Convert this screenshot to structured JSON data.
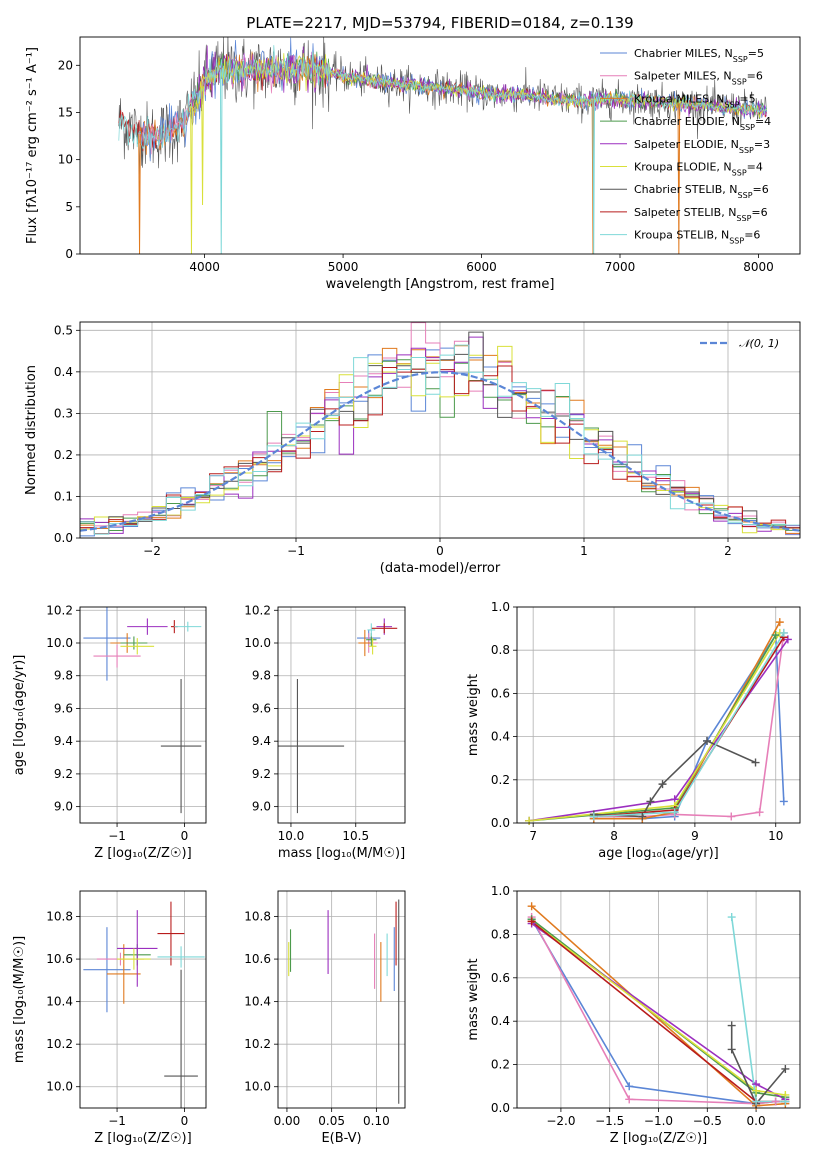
{
  "colors": {
    "Chabrier MILES": "#5b86d6",
    "Salpeter MILES": "#e67fb8",
    "Kroupa MILES": "#e07a1f",
    "Chabrier ELODIE": "#4c9a4c",
    "Salpeter ELODIE": "#9b2fbf",
    "Kroupa ELODIE": "#d9e03a",
    "Chabrier STELIB": "#555555",
    "Salpeter STELIB": "#b81c1c",
    "Kroupa STELIB": "#7fd8d8"
  },
  "chart_data": [
    {
      "id": "spectrum",
      "type": "line",
      "title": "PLATE=2217, MJD=53794, FIBERID=0184, z=0.139",
      "xlabel": "wavelength [Angstrom, rest frame]",
      "ylabel": "Flux [fλ10⁻¹⁷ erg cm⁻² s⁻¹ A⁻¹]",
      "xlim": [
        3100,
        8300
      ],
      "ylim": [
        0,
        23
      ],
      "xticks": [
        4000,
        5000,
        6000,
        7000,
        8000
      ],
      "yticks": [
        0,
        5,
        10,
        15,
        20
      ],
      "grid": false,
      "legend_position": "top-right",
      "legend": [
        {
          "name": "Chabrier MILES",
          "label": "Chabrier MILES, N",
          "sub": "SSP",
          "tail": "=5"
        },
        {
          "name": "Salpeter MILES",
          "label": "Salpeter MILES, N",
          "sub": "SSP",
          "tail": "=6"
        },
        {
          "name": "Kroupa MILES",
          "label": "Kroupa MILES, N",
          "sub": "SSP",
          "tail": "=5"
        },
        {
          "name": "Chabrier ELODIE",
          "label": "Chabrier ELODIE, N",
          "sub": "SSP",
          "tail": "=4"
        },
        {
          "name": "Salpeter ELODIE",
          "label": "Salpeter ELODIE, N",
          "sub": "SSP",
          "tail": "=3"
        },
        {
          "name": "Kroupa ELODIE",
          "label": "Kroupa ELODIE, N",
          "sub": "SSP",
          "tail": "=4"
        },
        {
          "name": "Chabrier STELIB",
          "label": "Chabrier STELIB, N",
          "sub": "SSP",
          "tail": "=6"
        },
        {
          "name": "Salpeter STELIB",
          "label": "Salpeter STELIB, N",
          "sub": "SSP",
          "tail": "=6"
        },
        {
          "name": "Kroupa STELIB",
          "label": "Kroupa STELIB, N",
          "sub": "SSP",
          "tail": "=6"
        }
      ],
      "continuum": [
        [
          3380,
          14.1
        ],
        [
          3450,
          13.5
        ],
        [
          3550,
          12.5
        ],
        [
          3650,
          12.6
        ],
        [
          3750,
          13.0
        ],
        [
          3850,
          13.8
        ],
        [
          3900,
          15.5
        ],
        [
          3950,
          16.8
        ],
        [
          4000,
          18.2
        ],
        [
          4100,
          19.6
        ],
        [
          4300,
          19.4
        ],
        [
          4500,
          19.6
        ],
        [
          4700,
          19.7
        ],
        [
          4900,
          19.2
        ],
        [
          5100,
          18.6
        ],
        [
          5300,
          18.2
        ],
        [
          5500,
          17.9
        ],
        [
          5700,
          17.6
        ],
        [
          5900,
          17.3
        ],
        [
          6100,
          16.9
        ],
        [
          6300,
          16.9
        ],
        [
          6500,
          16.5
        ],
        [
          6700,
          16.2
        ],
        [
          6900,
          16.4
        ],
        [
          7100,
          16.3
        ],
        [
          7300,
          16.1
        ],
        [
          7500,
          15.9
        ],
        [
          7700,
          15.6
        ],
        [
          7900,
          15.4
        ],
        [
          8060,
          15.2
        ]
      ],
      "dips": [
        {
          "series": "Kroupa MILES",
          "x": 3530,
          "y": 0
        },
        {
          "series": "Kroupa MILES",
          "x": 6805,
          "y": 0
        },
        {
          "series": "Kroupa MILES",
          "x": 7425,
          "y": 0
        },
        {
          "series": "Kroupa ELODIE",
          "x": 3905,
          "y": 0
        },
        {
          "series": "Kroupa ELODIE",
          "x": 3985,
          "y": 5.2
        },
        {
          "series": "Kroupa STELIB",
          "x": 4120,
          "y": 0
        },
        {
          "series": "Kroupa STELIB",
          "x": 6810,
          "y": 0
        }
      ]
    },
    {
      "id": "residuals",
      "type": "bar",
      "xlabel": "(data-model)/error",
      "ylabel": "Normed distribution",
      "xlim": [
        -2.5,
        2.5
      ],
      "ylim": [
        0,
        0.52
      ],
      "xticks": [
        -2,
        -1,
        0,
        1,
        2
      ],
      "yticks": [
        0.0,
        0.1,
        0.2,
        0.3,
        0.4,
        0.5
      ],
      "grid": true,
      "legend_position": "top-right",
      "legend_label": "𝒩(0, 1)",
      "bin_width": 0.1,
      "bin_start": -2.5,
      "gaussian": {
        "mu": 0,
        "sigma": 1,
        "color": "#5b86d6"
      }
    },
    {
      "id": "age-vs-Z",
      "type": "scatter",
      "xlabel": "Z [log₁₀(Z/Z☉)]",
      "ylabel": "age  [log₁₀(age/yr)]",
      "xlim": [
        -1.55,
        0.32
      ],
      "ylim": [
        8.9,
        10.22
      ],
      "xticks": [
        -1,
        0
      ],
      "yticks": [
        9.0,
        9.2,
        9.4,
        9.6,
        9.8,
        10.0,
        10.2
      ],
      "grid": true,
      "points": [
        {
          "series": "Chabrier MILES",
          "x": -1.15,
          "y": 10.03,
          "xerr": 0.35,
          "yerr": 0.26
        },
        {
          "series": "Salpeter MILES",
          "x": -1.0,
          "y": 9.92,
          "xerr": 0.35,
          "yerr": 0.07
        },
        {
          "series": "Kroupa MILES",
          "x": -0.85,
          "y": 10.0,
          "xerr": 0.25,
          "yerr": 0.06
        },
        {
          "series": "Chabrier ELODIE",
          "x": -0.75,
          "y": 10.0,
          "xerr": 0.2,
          "yerr": 0.04
        },
        {
          "series": "Salpeter ELODIE",
          "x": -0.55,
          "y": 10.1,
          "xerr": 0.3,
          "yerr": 0.05
        },
        {
          "series": "Kroupa ELODIE",
          "x": -0.7,
          "y": 9.98,
          "xerr": 0.25,
          "yerr": 0.05
        },
        {
          "series": "Chabrier STELIB",
          "x": -0.05,
          "y": 9.37,
          "xerr": 0.3,
          "yerr": 0.41
        },
        {
          "series": "Salpeter STELIB",
          "x": -0.15,
          "y": 10.1,
          "xerr": 0.05,
          "yerr": 0.04
        },
        {
          "series": "Kroupa STELIB",
          "x": 0.05,
          "y": 10.1,
          "xerr": 0.2,
          "yerr": 0.03
        }
      ]
    },
    {
      "id": "age-vs-mass",
      "type": "scatter",
      "xlabel": "mass [log₁₀(M/M☉)]",
      "xlim": [
        9.9,
        10.88
      ],
      "ylim": [
        8.9,
        10.22
      ],
      "xticks": [
        10.0,
        10.5
      ],
      "yticks": [
        9.0,
        9.2,
        9.4,
        9.6,
        9.8,
        10.0,
        10.2
      ],
      "grid": true,
      "points": [
        {
          "series": "Chabrier MILES",
          "x": 10.6,
          "y": 10.03,
          "xerr": 0.09,
          "yerr": 0.05
        },
        {
          "series": "Salpeter MILES",
          "x": 10.6,
          "y": 10.0,
          "xerr": 0.07,
          "yerr": 0.06
        },
        {
          "series": "Kroupa MILES",
          "x": 10.57,
          "y": 10.0,
          "xerr": 0.05,
          "yerr": 0.08
        },
        {
          "series": "Chabrier ELODIE",
          "x": 10.62,
          "y": 10.02,
          "xerr": 0.04,
          "yerr": 0.04
        },
        {
          "series": "Salpeter ELODIE",
          "x": 10.72,
          "y": 10.1,
          "xerr": 0.06,
          "yerr": 0.05
        },
        {
          "series": "Kroupa ELODIE",
          "x": 10.63,
          "y": 9.98,
          "xerr": 0.03,
          "yerr": 0.05
        },
        {
          "series": "Chabrier STELIB",
          "x": 10.05,
          "y": 9.37,
          "xerr": 0.36,
          "yerr": 0.41
        },
        {
          "series": "Salpeter STELIB",
          "x": 10.72,
          "y": 10.09,
          "xerr": 0.1,
          "yerr": 0.03
        },
        {
          "series": "Kroupa STELIB",
          "x": 10.62,
          "y": 10.08,
          "xerr": 0.03,
          "yerr": 0.04
        }
      ]
    },
    {
      "id": "massweight-vs-age",
      "type": "line",
      "xlabel": "age  [log₁₀(age/yr)]",
      "ylabel": "mass weight",
      "xlim": [
        6.8,
        10.3
      ],
      "ylim": [
        0,
        1.0
      ],
      "xticks": [
        7,
        8,
        9,
        10
      ],
      "yticks": [
        0.0,
        0.2,
        0.4,
        0.6,
        0.8,
        1.0
      ],
      "grid": true,
      "series": [
        {
          "name": "Chabrier MILES",
          "x": [
            7.75,
            8.35,
            8.75,
            9.15,
            10.0,
            10.1
          ],
          "y": [
            0.02,
            0.02,
            0.03,
            0.38,
            0.87,
            0.1
          ]
        },
        {
          "name": "Salpeter MILES",
          "x": [
            7.75,
            8.35,
            8.75,
            9.45,
            9.8,
            10.1
          ],
          "y": [
            0.03,
            0.03,
            0.04,
            0.03,
            0.05,
            0.88
          ]
        },
        {
          "name": "Kroupa MILES",
          "x": [
            7.75,
            8.35,
            8.75,
            10.05
          ],
          "y": [
            0.02,
            0.02,
            0.05,
            0.93
          ]
        },
        {
          "name": "Chabrier ELODIE",
          "x": [
            6.95,
            8.75,
            10.0
          ],
          "y": [
            0.01,
            0.07,
            0.87
          ]
        },
        {
          "name": "Salpeter ELODIE",
          "x": [
            6.95,
            8.75,
            10.15
          ],
          "y": [
            0.01,
            0.11,
            0.85
          ]
        },
        {
          "name": "Kroupa ELODIE",
          "x": [
            6.95,
            8.75,
            10.05
          ],
          "y": [
            0.01,
            0.08,
            0.88
          ]
        },
        {
          "name": "Chabrier STELIB",
          "x": [
            7.75,
            8.35,
            8.45,
            8.6,
            9.15,
            9.75
          ],
          "y": [
            0.04,
            0.03,
            0.1,
            0.18,
            0.38,
            0.28
          ]
        },
        {
          "name": "Salpeter STELIB",
          "x": [
            7.75,
            8.75,
            10.1
          ],
          "y": [
            0.03,
            0.06,
            0.86
          ]
        },
        {
          "name": "Kroupa STELIB",
          "x": [
            7.75,
            8.75,
            10.1
          ],
          "y": [
            0.03,
            0.05,
            0.88
          ]
        }
      ]
    },
    {
      "id": "mass-vs-Z",
      "type": "scatter",
      "xlabel": "Z [log₁₀(Z/Z☉)]",
      "ylabel": "mass [log₁₀(M/M☉)]",
      "xlim": [
        -1.55,
        0.32
      ],
      "ylim": [
        9.9,
        10.92
      ],
      "xticks": [
        -1,
        0
      ],
      "yticks": [
        10.0,
        10.2,
        10.4,
        10.6,
        10.8
      ],
      "grid": true,
      "points": [
        {
          "series": "Chabrier MILES",
          "x": -1.15,
          "y": 10.55,
          "xerr": 0.35,
          "yerr": 0.2
        },
        {
          "series": "Salpeter MILES",
          "x": -0.95,
          "y": 10.6,
          "xerr": 0.35,
          "yerr": 0.03
        },
        {
          "series": "Kroupa MILES",
          "x": -0.9,
          "y": 10.53,
          "xerr": 0.25,
          "yerr": 0.14
        },
        {
          "series": "Chabrier ELODIE",
          "x": -0.7,
          "y": 10.62,
          "xerr": 0.2,
          "yerr": 0.05
        },
        {
          "series": "Salpeter ELODIE",
          "x": -0.7,
          "y": 10.65,
          "xerr": 0.3,
          "yerr": 0.18
        },
        {
          "series": "Kroupa ELODIE",
          "x": -0.75,
          "y": 10.6,
          "xerr": 0.25,
          "yerr": 0.05
        },
        {
          "series": "Chabrier STELIB",
          "x": -0.05,
          "y": 10.05,
          "xerr": 0.25,
          "yerr": 0.5
        },
        {
          "series": "Salpeter STELIB",
          "x": -0.2,
          "y": 10.72,
          "xerr": 0.2,
          "yerr": 0.15
        },
        {
          "series": "Kroupa STELIB",
          "x": -0.05,
          "y": 10.61,
          "xerr": 0.35,
          "yerr": 0.05
        }
      ]
    },
    {
      "id": "mass-vs-ebv",
      "type": "scatter",
      "xlabel": "E(B-V)",
      "xlim": [
        -0.01,
        0.132
      ],
      "ylim": [
        9.9,
        10.92
      ],
      "xticks": [
        0.0,
        0.05,
        0.1
      ],
      "yticks": [
        10.0,
        10.2,
        10.4,
        10.6,
        10.8
      ],
      "grid": true,
      "points": [
        {
          "series": "Chabrier MILES",
          "x": 0.12,
          "y": 10.6,
          "xerr": 0,
          "yerr": 0.15
        },
        {
          "series": "Salpeter MILES",
          "x": 0.098,
          "y": 10.59,
          "xerr": 0,
          "yerr": 0.13
        },
        {
          "series": "Kroupa MILES",
          "x": 0.105,
          "y": 10.54,
          "xerr": 0,
          "yerr": 0.14
        },
        {
          "series": "Chabrier ELODIE",
          "x": 0.004,
          "y": 10.64,
          "xerr": 0,
          "yerr": 0.1
        },
        {
          "series": "Salpeter ELODIE",
          "x": 0.046,
          "y": 10.68,
          "xerr": 0,
          "yerr": 0.15
        },
        {
          "series": "Kroupa ELODIE",
          "x": 0.002,
          "y": 10.6,
          "xerr": 0,
          "yerr": 0.08
        },
        {
          "series": "Chabrier STELIB",
          "x": 0.125,
          "y": 10.4,
          "xerr": 0,
          "yerr": 0.48
        },
        {
          "series": "Salpeter STELIB",
          "x": 0.122,
          "y": 10.72,
          "xerr": 0,
          "yerr": 0.15
        },
        {
          "series": "Kroupa STELIB",
          "x": 0.112,
          "y": 10.62,
          "xerr": 0,
          "yerr": 0.1
        }
      ]
    },
    {
      "id": "massweight-vs-Z",
      "type": "line",
      "xlabel": "Z [log₁₀(Z/Z☉)]",
      "ylabel": "mass weight",
      "xlim": [
        -2.45,
        0.45
      ],
      "ylim": [
        0,
        1.0
      ],
      "xticks": [
        -2.0,
        -1.5,
        -1.0,
        -0.5,
        0.0
      ],
      "yticks": [
        0.0,
        0.2,
        0.4,
        0.6,
        0.8,
        1.0
      ],
      "grid": true,
      "series": [
        {
          "name": "Chabrier MILES",
          "x": [
            -2.3,
            -1.3,
            0.0,
            0.2
          ],
          "y": [
            0.87,
            0.1,
            0.02,
            0.03
          ]
        },
        {
          "name": "Salpeter MILES",
          "x": [
            -2.3,
            -1.3,
            0.0,
            0.2
          ],
          "y": [
            0.88,
            0.04,
            0.02,
            0.03
          ]
        },
        {
          "name": "Kroupa MILES",
          "x": [
            -2.3,
            0.0,
            0.3
          ],
          "y": [
            0.93,
            0.01,
            0.02
          ]
        },
        {
          "name": "Chabrier ELODIE",
          "x": [
            -2.3,
            0.0,
            0.3
          ],
          "y": [
            0.87,
            0.07,
            0.05
          ]
        },
        {
          "name": "Salpeter ELODIE",
          "x": [
            -2.3,
            0.0,
            0.3
          ],
          "y": [
            0.85,
            0.11,
            0.04
          ]
        },
        {
          "name": "Kroupa ELODIE",
          "x": [
            -2.3,
            0.0,
            0.3
          ],
          "y": [
            0.86,
            0.08,
            0.06
          ]
        },
        {
          "name": "Chabrier STELIB",
          "x": [
            -0.25,
            -0.25,
            0.0,
            0.3
          ],
          "y": [
            0.38,
            0.27,
            0.02,
            0.18
          ]
        },
        {
          "name": "Salpeter STELIB",
          "x": [
            -2.3,
            0.0,
            0.3
          ],
          "y": [
            0.86,
            0.03,
            0.03
          ]
        },
        {
          "name": "Kroupa STELIB",
          "x": [
            -0.25,
            0.0,
            0.3
          ],
          "y": [
            0.88,
            0.03,
            0.03
          ]
        }
      ]
    }
  ]
}
